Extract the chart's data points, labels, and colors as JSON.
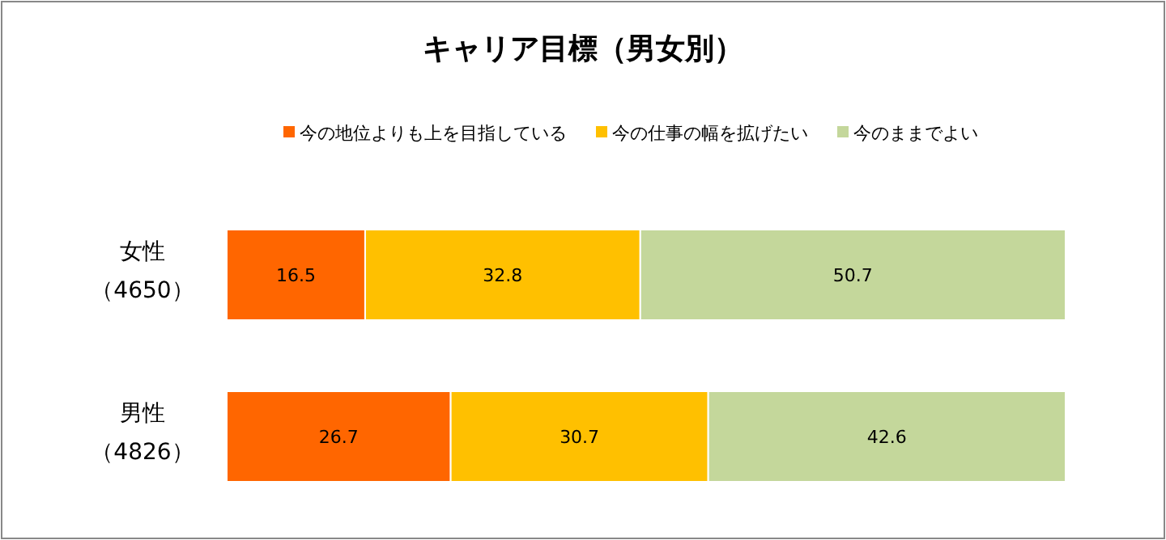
{
  "chart_data": {
    "type": "bar",
    "orientation": "horizontal",
    "stacked": true,
    "title": "キャリア目標（男女別）",
    "categories": [
      "女性（4650）",
      "男性（4826）"
    ],
    "series": [
      {
        "name": "今の地位よりも上を目指している",
        "color": "#ff6600",
        "values": [
          16.5,
          26.7
        ]
      },
      {
        "name": "今の仕事の幅を拡げたい",
        "color": "#ffc000",
        "values": [
          32.8,
          30.7
        ]
      },
      {
        "name": "今のままでよい",
        "color": "#c4d79b",
        "values": [
          50.7,
          42.6
        ]
      }
    ],
    "data_labels": true,
    "legend": "top"
  }
}
